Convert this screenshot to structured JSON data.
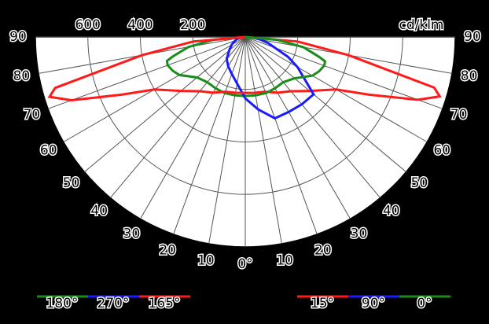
{
  "chart_data": {
    "type": "polar",
    "r_unit": "cd/klm",
    "rlim": [
      0,
      800
    ],
    "rticks": [
      200,
      400,
      600
    ],
    "angle_ticks": [
      {
        "value": 0,
        "label": "0°"
      },
      10,
      20,
      30,
      40,
      50,
      60,
      70,
      80,
      90
    ],
    "angles": [
      0,
      10,
      20,
      30,
      40,
      50,
      60,
      65,
      70,
      73,
      75,
      80,
      85,
      90
    ],
    "series": [
      {
        "name": "180°",
        "color": "#1a8c1a",
        "side": "left",
        "values": [
          225,
          226,
          228,
          226,
          225,
          240,
          290,
          305,
          315,
          312,
          285,
          220,
          120,
          0
        ]
      },
      {
        "name": "270°",
        "color": "#1a1aff",
        "side": "left",
        "values": [
          234,
          180,
          150,
          130,
          110,
          80,
          60,
          50,
          40,
          36,
          34,
          30,
          20,
          0
        ]
      },
      {
        "name": "165°",
        "color": "#ff1a1a",
        "side": "left",
        "values": [
          213,
          216,
          222,
          245,
          270,
          320,
          400,
          520,
          705,
          780,
          750,
          400,
          200,
          0
        ]
      },
      {
        "name": "15°",
        "color": "#ff1a1a",
        "side": "right",
        "values": [
          213,
          216,
          222,
          245,
          270,
          320,
          400,
          520,
          700,
          775,
          745,
          400,
          200,
          0
        ]
      },
      {
        "name": "90°",
        "color": "#1a1aff",
        "side": "right",
        "values": [
          234,
          280,
          330,
          330,
          335,
          340,
          230,
          180,
          120,
          100,
          90,
          60,
          30,
          0
        ]
      },
      {
        "name": "0°",
        "color": "#1a8c1a",
        "side": "right",
        "values": [
          225,
          226,
          228,
          226,
          225,
          245,
          295,
          310,
          320,
          318,
          290,
          225,
          120,
          0
        ]
      }
    ]
  }
}
